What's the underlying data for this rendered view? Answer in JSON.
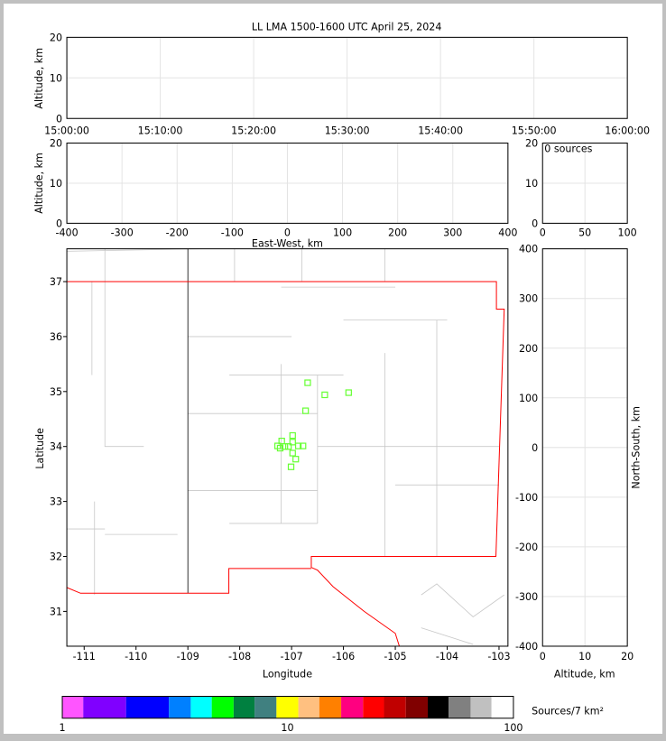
{
  "chart_data": [
    {
      "panel": "time-altitude",
      "type": "scatter",
      "title": "LL LMA 1500-1600 UTC April 25, 2024",
      "ylabel": "Altitude, km",
      "ylim": [
        0,
        20
      ],
      "yticks": [
        "0",
        "10",
        "20"
      ],
      "xticks": [
        "15:00:00",
        "15:10:00",
        "15:20:00",
        "15:30:00",
        "15:40:00",
        "15:50:00",
        "16:00:00"
      ],
      "points": []
    },
    {
      "panel": "eastwest-altitude",
      "type": "scatter",
      "xlabel": "East-West, km",
      "ylabel": "Altitude, km",
      "xlim": [
        -400,
        400
      ],
      "ylim": [
        0,
        20
      ],
      "xticks": [
        "-400",
        "-300",
        "-200",
        "-100",
        "0",
        "100",
        "200",
        "300",
        "400"
      ],
      "yticks": [
        "0",
        "10",
        "20"
      ],
      "points": []
    },
    {
      "panel": "histogram",
      "type": "bar",
      "annotation": "0 sources",
      "xlim": [
        0,
        100
      ],
      "ylim": [
        0,
        20
      ],
      "xticks": [
        "0",
        "50",
        "100"
      ],
      "yticks": [
        "0",
        "10",
        "20"
      ]
    },
    {
      "panel": "plan-view",
      "type": "scatter",
      "xlabel": "Longitude",
      "ylabel": "Latitude",
      "xlim": [
        -111.5,
        -102.83
      ],
      "ylim": [
        30.37,
        37.6
      ],
      "xticks": [
        "-111",
        "-110",
        "-109",
        "-108",
        "-107",
        "-106",
        "-105",
        "-104",
        "-103"
      ],
      "yticks": [
        "31",
        "32",
        "33",
        "34",
        "35",
        "36",
        "37"
      ],
      "marker_color": "#66ff33",
      "points": [
        [
          -106.69,
          35.16
        ],
        [
          -106.36,
          34.94
        ],
        [
          -105.9,
          34.98
        ],
        [
          -106.73,
          34.65
        ],
        [
          -106.98,
          34.2
        ],
        [
          -106.98,
          34.08
        ],
        [
          -107.19,
          34.1
        ],
        [
          -107.27,
          34.01
        ],
        [
          -107.13,
          34.0
        ],
        [
          -107.06,
          34.0
        ],
        [
          -106.87,
          34.01
        ],
        [
          -106.78,
          34.01
        ],
        [
          -106.98,
          33.88
        ],
        [
          -106.92,
          33.77
        ],
        [
          -107.01,
          33.63
        ],
        [
          -107.22,
          33.97
        ]
      ]
    },
    {
      "panel": "altitude-northsouth",
      "type": "scatter",
      "xlabel": "Altitude, km",
      "ylabel": "North-South, km",
      "xlim": [
        0,
        20
      ],
      "ylim": [
        -400,
        400
      ],
      "xticks": [
        "0",
        "10",
        "20"
      ],
      "yticks": [
        "400",
        "300",
        "200",
        "100",
        "0",
        "-100",
        "-200",
        "-300",
        "-400"
      ],
      "points": []
    },
    {
      "panel": "colorbar",
      "type": "colorbar",
      "label": "Sources/7 km²",
      "scale": "log",
      "range": [
        1,
        100
      ],
      "ticks": [
        "1",
        "10",
        "100"
      ],
      "colors": [
        "#ff55ff",
        "#8000ff",
        "#0000ff",
        "#0080ff",
        "#00ffff",
        "#00ff00",
        "#008040",
        "#408080",
        "#ffff00",
        "#ffc080",
        "#ff8000",
        "#ff0080",
        "#ff0000",
        "#c00000",
        "#800000",
        "#000000",
        "#808080",
        "#c0c0c0",
        "#ffffff"
      ]
    }
  ]
}
